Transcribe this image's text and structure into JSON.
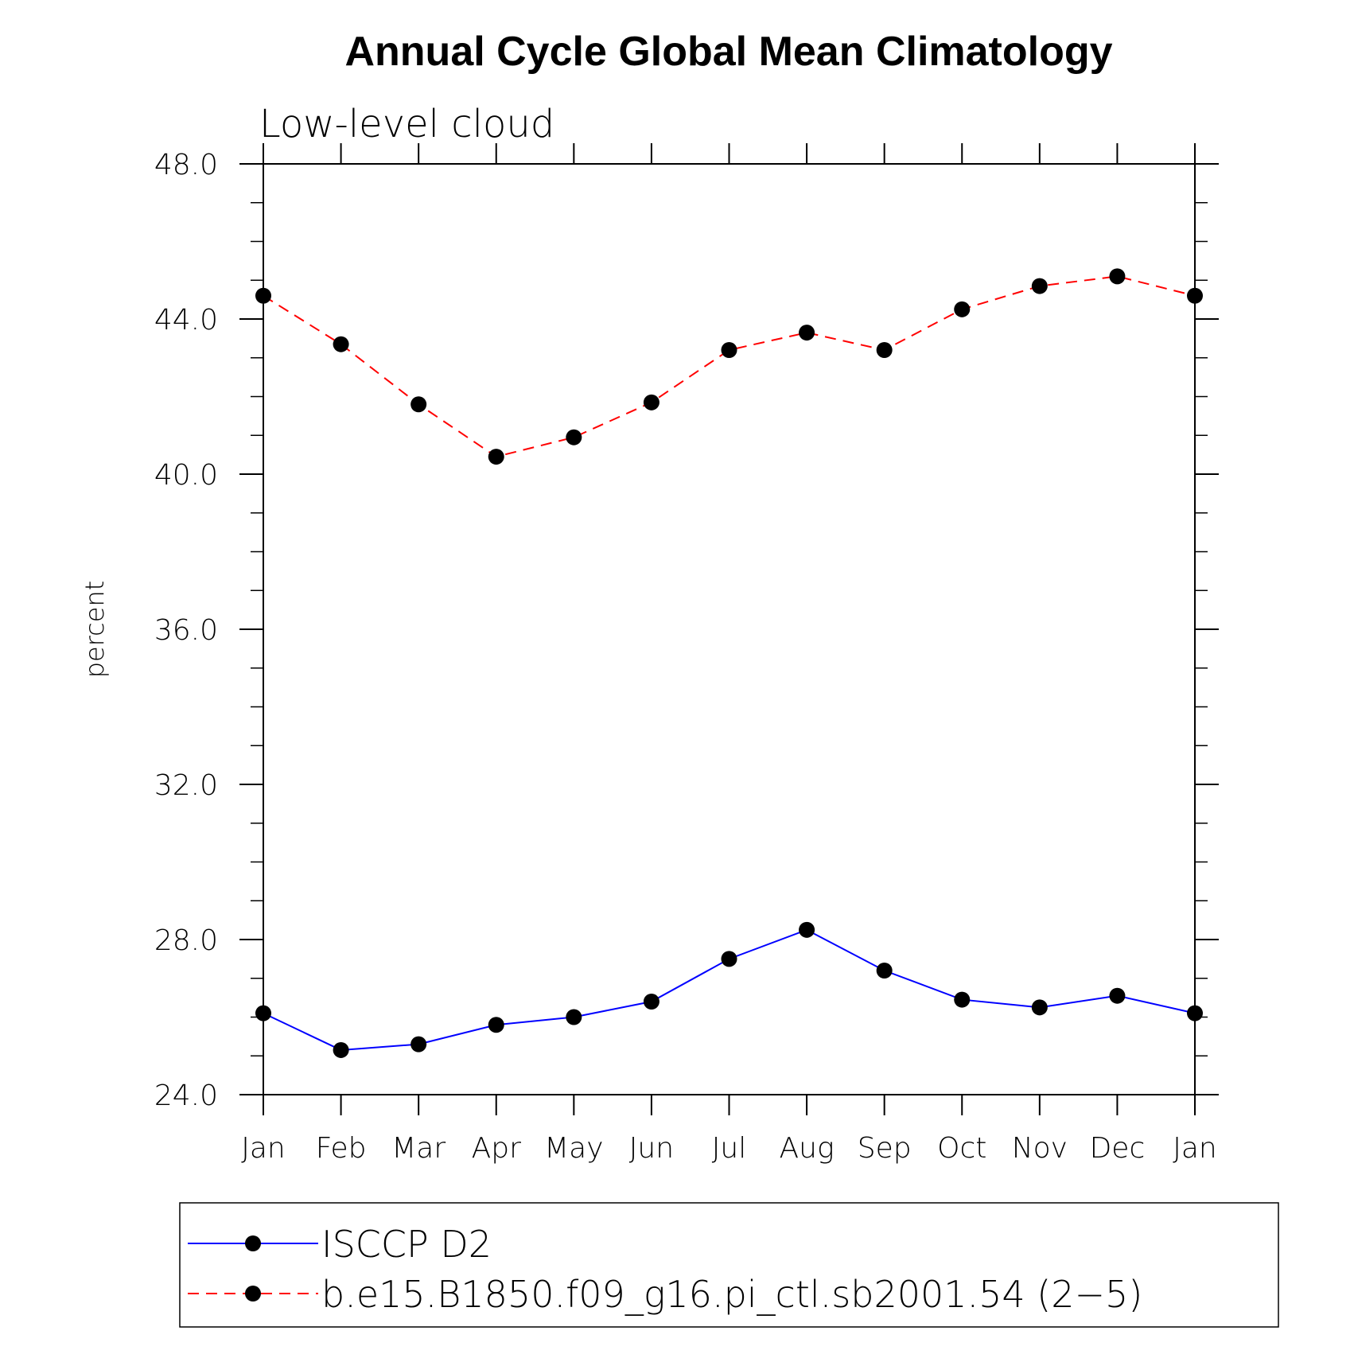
{
  "chart_data": {
    "type": "line",
    "title": "Annual Cycle Global Mean Climatology",
    "subtitle": "Low-level cloud",
    "xlabel": "",
    "ylabel": "percent",
    "categories": [
      "Jan",
      "Feb",
      "Mar",
      "Apr",
      "May",
      "Jun",
      "Jul",
      "Aug",
      "Sep",
      "Oct",
      "Nov",
      "Dec",
      "Jan"
    ],
    "ylim": [
      24.0,
      48.0
    ],
    "yticks": [
      "24.0",
      "28.0",
      "32.0",
      "36.0",
      "40.0",
      "44.0",
      "48.0"
    ],
    "grid": false,
    "legend_position": "bottom",
    "series": [
      {
        "name": "ISCCP D2",
        "color": "#0000ff",
        "dash": "solid",
        "marker": "filled-circle",
        "values": [
          26.1,
          25.15,
          25.3,
          25.8,
          26.0,
          26.4,
          27.5,
          28.25,
          27.2,
          26.45,
          26.25,
          26.55,
          26.1
        ]
      },
      {
        "name": "b.e15.B1850.f09_g16.pi_ctl.sb2001.54 (2−5)",
        "color": "#ff0000",
        "dash": "dashed",
        "marker": "filled-circle",
        "values": [
          44.6,
          43.35,
          41.8,
          40.45,
          40.95,
          41.85,
          43.2,
          43.65,
          43.2,
          44.25,
          44.85,
          45.1,
          44.6
        ]
      }
    ]
  }
}
